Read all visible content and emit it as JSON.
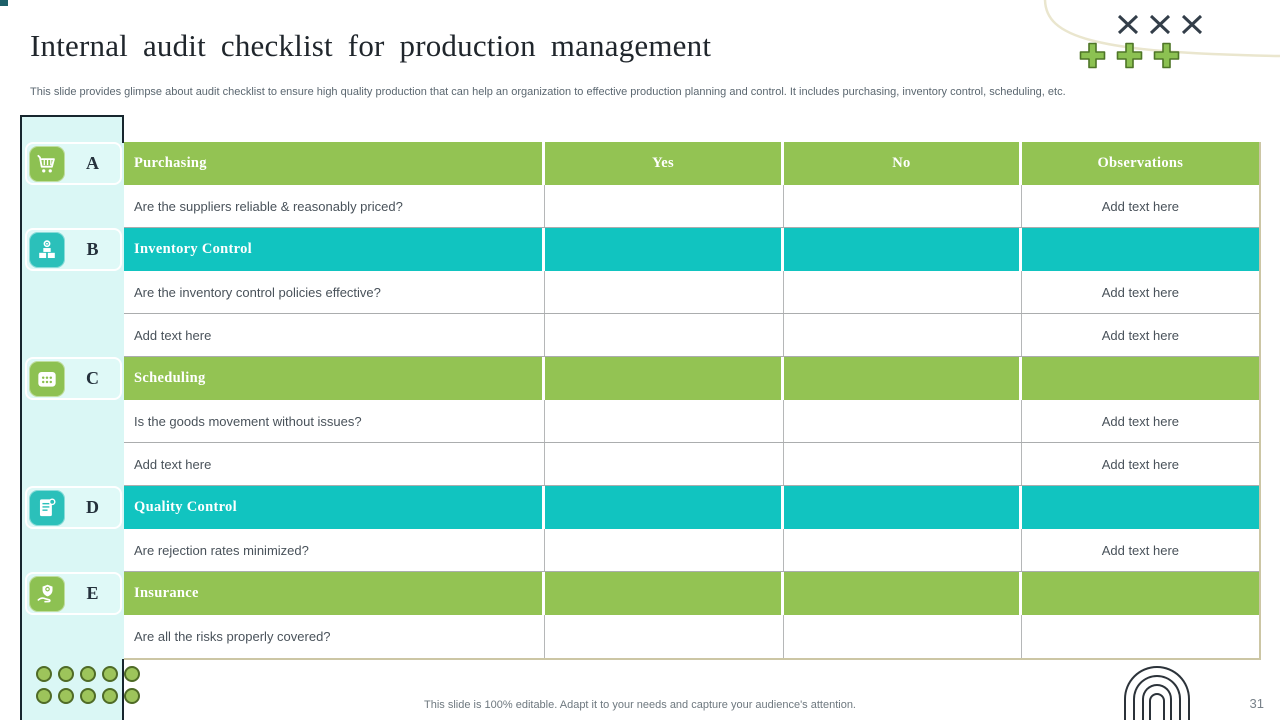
{
  "slide": {
    "title": "Internal audit checklist for production management",
    "subtitle": "This slide provides glimpse about audit checklist to ensure high quality production that can help an organization to effective production planning and control. It includes purchasing, inventory control, scheduling, etc.",
    "footer_note": "This slide is 100% editable. Adapt it to your needs and capture your audience's attention.",
    "page_number": "31"
  },
  "colors": {
    "green": "#93C353",
    "teal": "#11C4C0",
    "icon_green": "#8DC152",
    "icon_teal": "#2BC0BA",
    "sidebar_bg": "#DAF7F5",
    "header_text": "#FFFFFF"
  },
  "sidebar": {
    "sections": [
      {
        "letter": "A",
        "icon": "shopping-cart-icon",
        "color": "green"
      },
      {
        "letter": "B",
        "icon": "inventory-boxes-icon",
        "color": "teal"
      },
      {
        "letter": "C",
        "icon": "calendar-icon",
        "color": "green"
      },
      {
        "letter": "D",
        "icon": "inspection-document-icon",
        "color": "teal"
      },
      {
        "letter": "E",
        "icon": "shield-hand-icon",
        "color": "green"
      }
    ]
  },
  "table": {
    "rows": [
      {
        "type": "header",
        "color": "green",
        "cells": [
          "Purchasing",
          "Yes",
          "No",
          "Observations"
        ]
      },
      {
        "type": "item",
        "cells": [
          "Are the suppliers reliable & reasonably priced?",
          "",
          "",
          "Add text here"
        ]
      },
      {
        "type": "header",
        "color": "teal",
        "cells": [
          "Inventory Control",
          "",
          "",
          ""
        ]
      },
      {
        "type": "item",
        "cells": [
          "Are the inventory control policies effective?",
          "",
          "",
          "Add text here"
        ]
      },
      {
        "type": "item",
        "cells": [
          "Add text here",
          "",
          "",
          "Add text here"
        ]
      },
      {
        "type": "header",
        "color": "green",
        "cells": [
          "Scheduling",
          "",
          "",
          ""
        ]
      },
      {
        "type": "item",
        "cells": [
          "Is the goods movement without issues?",
          "",
          "",
          "Add text here"
        ]
      },
      {
        "type": "item",
        "cells": [
          "Add text here",
          "",
          "",
          "Add text here"
        ]
      },
      {
        "type": "header",
        "color": "teal",
        "cells": [
          "Quality Control",
          "",
          "",
          ""
        ]
      },
      {
        "type": "item",
        "cells": [
          "Are rejection rates minimized?",
          "",
          "",
          "Add text here"
        ]
      },
      {
        "type": "header",
        "color": "green",
        "cells": [
          "Insurance",
          "",
          "",
          ""
        ]
      },
      {
        "type": "item",
        "cells": [
          "Are all the risks properly covered?",
          "",
          "",
          ""
        ]
      }
    ]
  }
}
